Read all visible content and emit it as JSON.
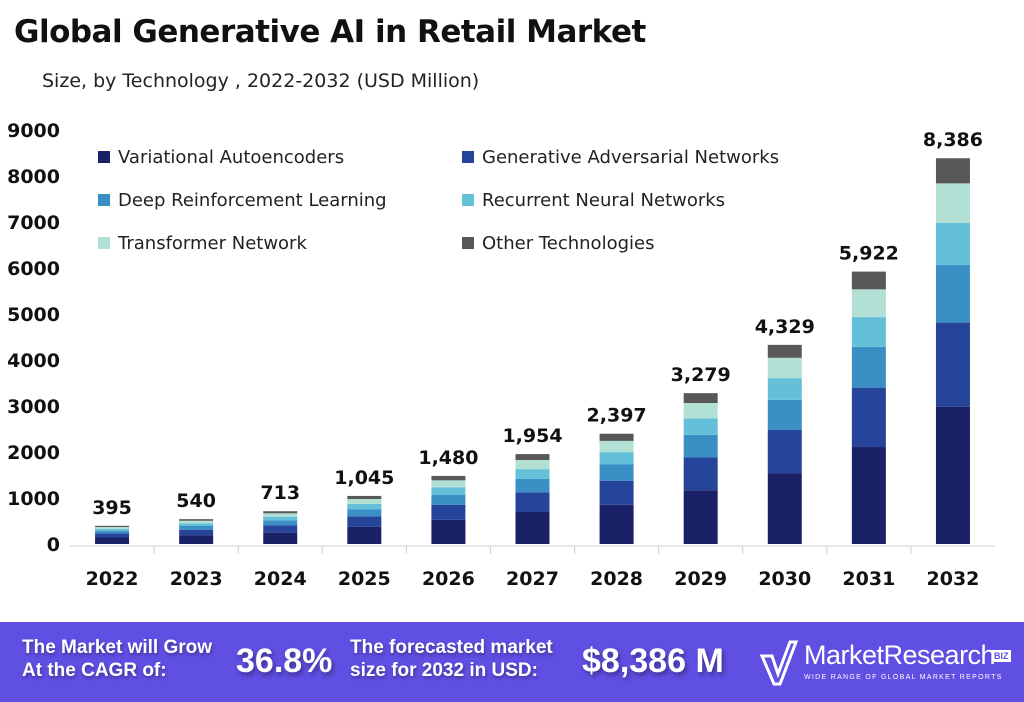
{
  "chart_data": {
    "type": "bar",
    "stacked": true,
    "title": "Global Generative AI in Retail Market",
    "subtitle": "Size, by Technology , 2022-2032 (USD Million)",
    "xlabel": "",
    "ylabel": "",
    "ylim": [
      0,
      9000
    ],
    "yticks": [
      0,
      1000,
      2000,
      3000,
      4000,
      5000,
      6000,
      7000,
      8000,
      9000
    ],
    "grid": false,
    "legend_position": "top-left",
    "categories": [
      "2022",
      "2023",
      "2024",
      "2025",
      "2026",
      "2027",
      "2028",
      "2029",
      "2030",
      "2031",
      "2032"
    ],
    "totals": [
      395,
      540,
      713,
      1045,
      1480,
      1954,
      2397,
      3279,
      4329,
      5922,
      8386
    ],
    "total_labels": [
      "395",
      "540",
      "713",
      "1,045",
      "1,480",
      "1,954",
      "2,397",
      "3,279",
      "4,329",
      "5,922",
      "8,386"
    ],
    "series": [
      {
        "name": "Variational Autoencoders",
        "color": "#1a2166",
        "values": [
          141,
          192,
          254,
          372,
          527,
          696,
          853,
          1167,
          1541,
          2108,
          2985
        ]
      },
      {
        "name": "Generative Adversarial Networks",
        "color": "#25449a",
        "values": [
          86,
          118,
          155,
          228,
          323,
          426,
          523,
          715,
          944,
          1291,
          1828
        ]
      },
      {
        "name": "Deep Reinforcement Learning",
        "color": "#3a8fc4",
        "values": [
          59,
          81,
          107,
          157,
          222,
          293,
          360,
          492,
          649,
          888,
          1258
        ]
      },
      {
        "name": "Recurrent Neural Networks",
        "color": "#64c0d8",
        "values": [
          43,
          59,
          78,
          114,
          161,
          213,
          261,
          357,
          472,
          646,
          914
        ]
      },
      {
        "name": "Transformer Network",
        "color": "#b3e0d4",
        "values": [
          40,
          55,
          73,
          107,
          151,
          199,
          244,
          334,
          442,
          604,
          855
        ]
      },
      {
        "name": "Other Technologies",
        "color": "#585858",
        "values": [
          26,
          35,
          46,
          67,
          96,
          127,
          156,
          214,
          281,
          385,
          546
        ]
      }
    ]
  },
  "footer": {
    "cagr_label_1": "The Market will Grow",
    "cagr_label_2": "At the CAGR of:",
    "cagr_value": "36.8%",
    "forecast_label_1": "The forecasted market",
    "forecast_label_2": "size for 2032 in USD:",
    "forecast_value": "$8,386 M",
    "background": "#5f4fe2"
  },
  "logo": {
    "name": "MarketResearch",
    "badge": "BIZ",
    "tagline": "WIDE RANGE OF GLOBAL MARKET REPORTS"
  }
}
